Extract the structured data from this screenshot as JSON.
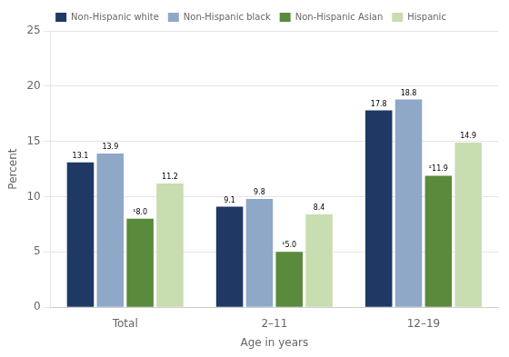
{
  "chart_data": {
    "type": "bar",
    "categories": [
      "Total",
      "2–11",
      "12–19"
    ],
    "series": [
      {
        "name": "Non-Hispanic white",
        "color": "#1f3864",
        "values": [
          13.1,
          9.1,
          17.8
        ]
      },
      {
        "name": "Non-Hispanic black",
        "color": "#8fa8c8",
        "values": [
          13.9,
          9.8,
          18.8
        ]
      },
      {
        "name": "Non-Hispanic Asian",
        "color": "#5a8a3c",
        "values": [
          8.0,
          5.0,
          11.9
        ],
        "value_labels": [
          "¹8.0",
          "¹5.0",
          "²11.9"
        ]
      },
      {
        "name": "Hispanic",
        "color": "#c8ddb0",
        "values": [
          11.2,
          8.4,
          14.9
        ]
      }
    ],
    "xlabel": "Age in years",
    "ylabel": "Percent",
    "ylim": [
      0,
      25
    ],
    "yticks": [
      0,
      5,
      10,
      15,
      20,
      25
    ],
    "grid": true,
    "legend": "top",
    "data_labels": true
  }
}
